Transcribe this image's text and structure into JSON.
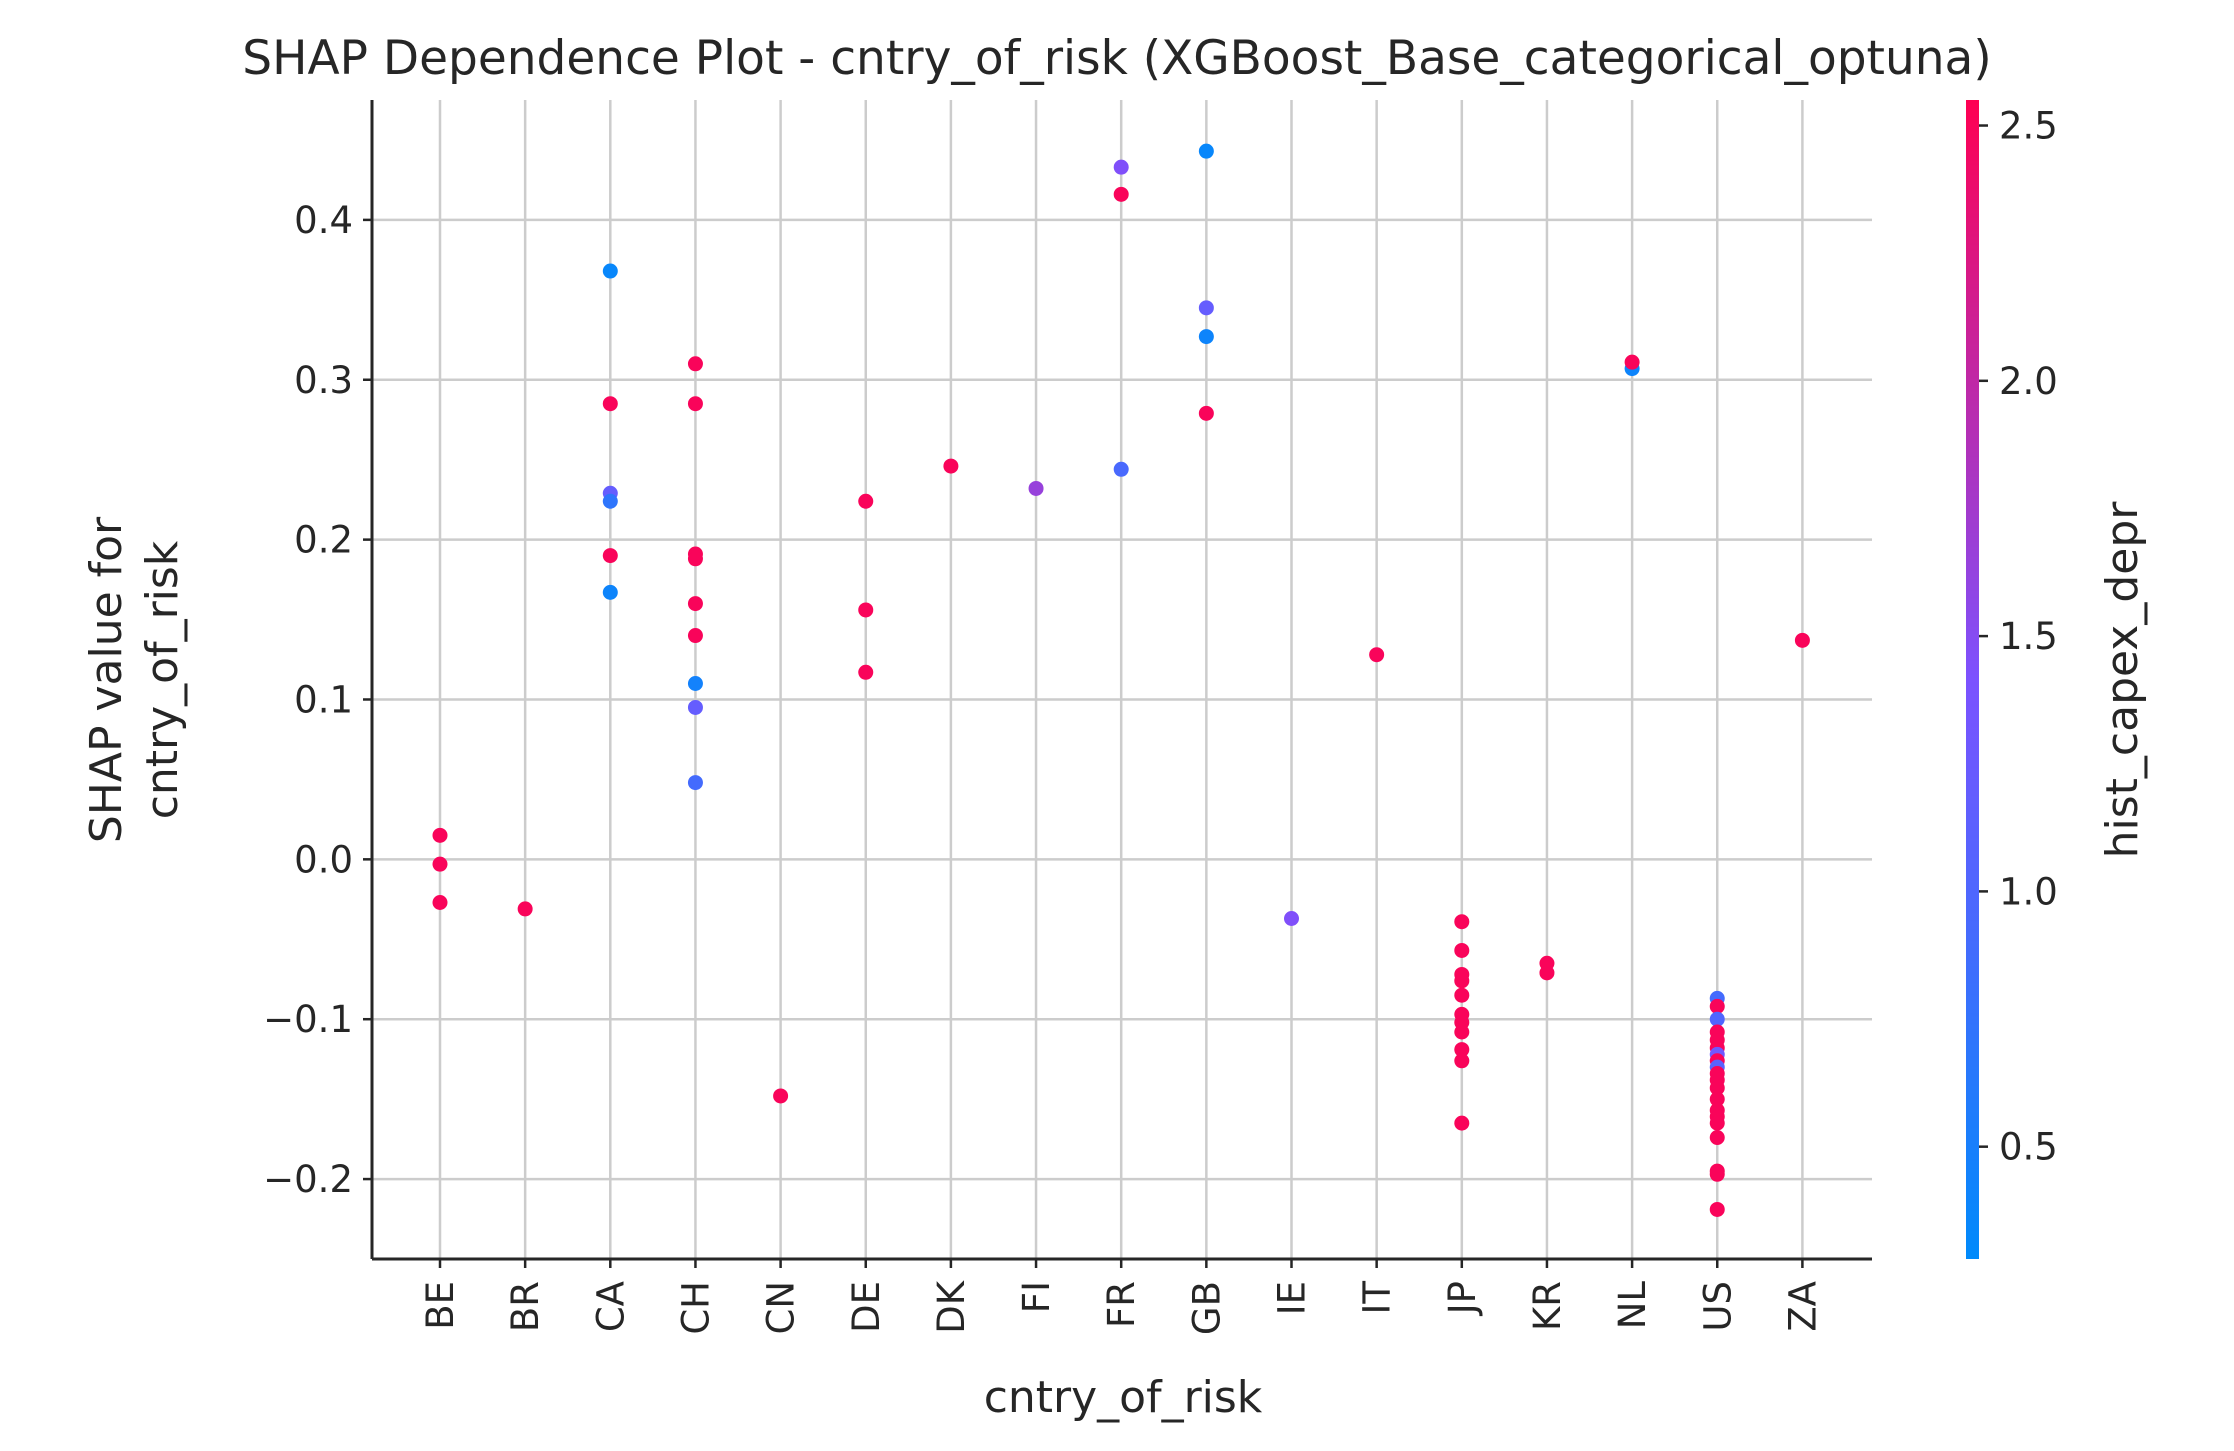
{
  "chart_data": {
    "type": "scatter",
    "title": "SHAP Dependence Plot - cntry_of_risk (XGBoost_Base_categorical_optuna)",
    "xlabel": "cntry_of_risk",
    "ylabel_lines": [
      "SHAP value for",
      "cntry_of_risk"
    ],
    "categories": [
      "BE",
      "BR",
      "CA",
      "CH",
      "CN",
      "DE",
      "DK",
      "FI",
      "FR",
      "GB",
      "IE",
      "IT",
      "JP",
      "KR",
      "NL",
      "US",
      "ZA"
    ],
    "ylim": [
      -0.25,
      0.475
    ],
    "yticks": [
      -0.2,
      -0.1,
      0.0,
      0.1,
      0.2,
      0.3,
      0.4
    ],
    "ytick_labels": [
      "−0.2",
      "−0.1",
      "0.0",
      "0.1",
      "0.2",
      "0.3",
      "0.4"
    ],
    "grid": true,
    "colorbar": {
      "label": "hist_capex_depr",
      "range": [
        0.28,
        2.55
      ],
      "ticks": [
        0.5,
        1.0,
        1.5,
        2.0,
        2.5
      ],
      "tick_labels": [
        "0.5",
        "1.0",
        "1.5",
        "2.0",
        "2.5"
      ],
      "colors": [
        "#008afb",
        "#7c52ff",
        "#ff0052"
      ]
    },
    "points": [
      {
        "x": "BE",
        "y": 0.015,
        "c": 2.5
      },
      {
        "x": "BE",
        "y": -0.003,
        "c": 2.5
      },
      {
        "x": "BE",
        "y": -0.027,
        "c": 2.5
      },
      {
        "x": "BR",
        "y": -0.031,
        "c": 2.5
      },
      {
        "x": "CA",
        "y": 0.368,
        "c": 0.35
      },
      {
        "x": "CA",
        "y": 0.285,
        "c": 2.5
      },
      {
        "x": "CA",
        "y": 0.229,
        "c": 1.2
      },
      {
        "x": "CA",
        "y": 0.224,
        "c": 0.7
      },
      {
        "x": "CA",
        "y": 0.19,
        "c": 2.5
      },
      {
        "x": "CA",
        "y": 0.167,
        "c": 0.4
      },
      {
        "x": "CH",
        "y": 0.31,
        "c": 2.5
      },
      {
        "x": "CH",
        "y": 0.285,
        "c": 2.5
      },
      {
        "x": "CH",
        "y": 0.191,
        "c": 2.5
      },
      {
        "x": "CH",
        "y": 0.188,
        "c": 2.5
      },
      {
        "x": "CH",
        "y": 0.16,
        "c": 2.5
      },
      {
        "x": "CH",
        "y": 0.14,
        "c": 2.5
      },
      {
        "x": "CH",
        "y": 0.11,
        "c": 0.45
      },
      {
        "x": "CH",
        "y": 0.095,
        "c": 1.2
      },
      {
        "x": "CH",
        "y": 0.048,
        "c": 0.9
      },
      {
        "x": "CN",
        "y": -0.148,
        "c": 2.5
      },
      {
        "x": "DE",
        "y": 0.224,
        "c": 2.5
      },
      {
        "x": "DE",
        "y": 0.156,
        "c": 2.5
      },
      {
        "x": "DE",
        "y": 0.117,
        "c": 2.5
      },
      {
        "x": "DK",
        "y": 0.246,
        "c": 2.5
      },
      {
        "x": "FI",
        "y": 0.232,
        "c": 1.65
      },
      {
        "x": "FR",
        "y": 0.433,
        "c": 1.45
      },
      {
        "x": "FR",
        "y": 0.416,
        "c": 2.5
      },
      {
        "x": "FR",
        "y": 0.244,
        "c": 0.95
      },
      {
        "x": "GB",
        "y": 0.443,
        "c": 0.35
      },
      {
        "x": "GB",
        "y": 0.345,
        "c": 1.2
      },
      {
        "x": "GB",
        "y": 0.327,
        "c": 0.4
      },
      {
        "x": "GB",
        "y": 0.279,
        "c": 2.5
      },
      {
        "x": "IE",
        "y": -0.037,
        "c": 1.45
      },
      {
        "x": "IT",
        "y": 0.128,
        "c": 2.5
      },
      {
        "x": "JP",
        "y": -0.039,
        "c": 2.5
      },
      {
        "x": "JP",
        "y": -0.057,
        "c": 2.5
      },
      {
        "x": "JP",
        "y": -0.072,
        "c": 2.5
      },
      {
        "x": "JP",
        "y": -0.076,
        "c": 2.5
      },
      {
        "x": "JP",
        "y": -0.085,
        "c": 2.5
      },
      {
        "x": "JP",
        "y": -0.097,
        "c": 2.5
      },
      {
        "x": "JP",
        "y": -0.102,
        "c": 2.5
      },
      {
        "x": "JP",
        "y": -0.108,
        "c": 2.5
      },
      {
        "x": "JP",
        "y": -0.119,
        "c": 2.5
      },
      {
        "x": "JP",
        "y": -0.126,
        "c": 2.5
      },
      {
        "x": "JP",
        "y": -0.165,
        "c": 2.5
      },
      {
        "x": "KR",
        "y": -0.065,
        "c": 2.5
      },
      {
        "x": "KR",
        "y": -0.071,
        "c": 2.5
      },
      {
        "x": "NL",
        "y": 0.307,
        "c": 0.4
      },
      {
        "x": "NL",
        "y": 0.311,
        "c": 2.5
      },
      {
        "x": "US",
        "y": -0.087,
        "c": 0.9
      },
      {
        "x": "US",
        "y": -0.092,
        "c": 2.5
      },
      {
        "x": "US",
        "y": -0.1,
        "c": 1.0
      },
      {
        "x": "US",
        "y": -0.108,
        "c": 2.5
      },
      {
        "x": "US",
        "y": -0.113,
        "c": 2.5
      },
      {
        "x": "US",
        "y": -0.118,
        "c": 2.5
      },
      {
        "x": "US",
        "y": -0.122,
        "c": 1.3
      },
      {
        "x": "US",
        "y": -0.126,
        "c": 2.5
      },
      {
        "x": "US",
        "y": -0.13,
        "c": 1.1
      },
      {
        "x": "US",
        "y": -0.134,
        "c": 2.5
      },
      {
        "x": "US",
        "y": -0.138,
        "c": 2.5
      },
      {
        "x": "US",
        "y": -0.143,
        "c": 2.5
      },
      {
        "x": "US",
        "y": -0.15,
        "c": 2.5
      },
      {
        "x": "US",
        "y": -0.157,
        "c": 2.5
      },
      {
        "x": "US",
        "y": -0.161,
        "c": 2.5
      },
      {
        "x": "US",
        "y": -0.165,
        "c": 2.5
      },
      {
        "x": "US",
        "y": -0.174,
        "c": 2.5
      },
      {
        "x": "US",
        "y": -0.195,
        "c": 2.5
      },
      {
        "x": "US",
        "y": -0.197,
        "c": 2.5
      },
      {
        "x": "US",
        "y": -0.219,
        "c": 2.5
      },
      {
        "x": "ZA",
        "y": 0.137,
        "c": 2.5
      }
    ]
  }
}
